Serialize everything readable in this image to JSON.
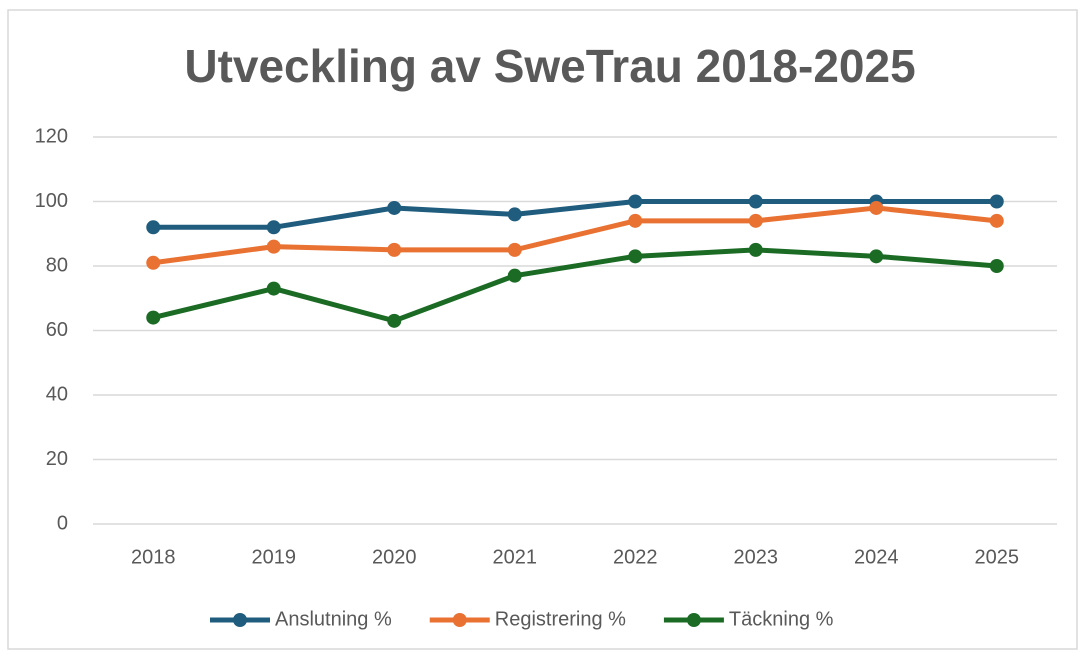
{
  "chart_data": {
    "type": "line",
    "title": "Utveckling av SweTrau 2018-2025",
    "categories": [
      "2018",
      "2019",
      "2020",
      "2021",
      "2022",
      "2023",
      "2024",
      "2025"
    ],
    "series": [
      {
        "name": "Anslutning %",
        "color": "#1f5c7d",
        "values": [
          92,
          92,
          98,
          96,
          100,
          100,
          100,
          100
        ]
      },
      {
        "name": "Registrering %",
        "color": "#e97132",
        "values": [
          81,
          86,
          85,
          85,
          94,
          94,
          98,
          94
        ]
      },
      {
        "name": "Täckning %",
        "color": "#1b6b25",
        "values": [
          64,
          73,
          63,
          77,
          83,
          85,
          83,
          80
        ]
      }
    ],
    "ylim": [
      0,
      120
    ],
    "yticks": [
      0,
      20,
      40,
      60,
      80,
      100,
      120
    ],
    "grid": true,
    "legend": "bottom"
  }
}
